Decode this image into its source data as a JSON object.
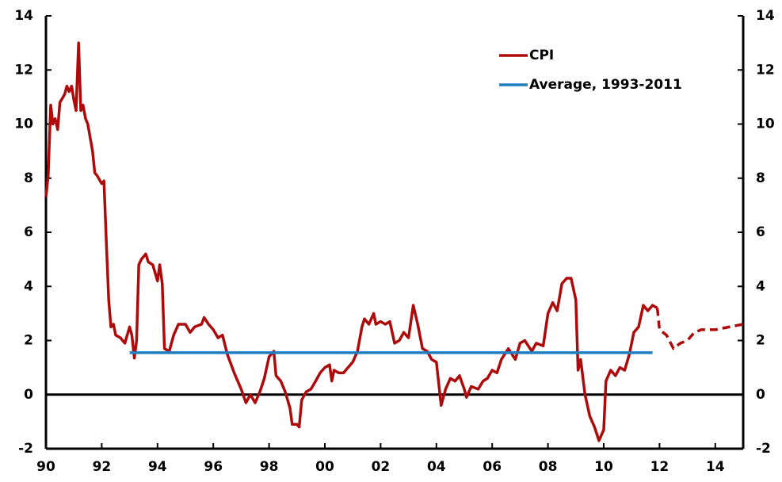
{
  "chart_data": {
    "type": "line",
    "xlim": [
      1990,
      2015
    ],
    "xticks": [
      {
        "value": 1990,
        "label": "90"
      },
      {
        "value": 1992,
        "label": "92"
      },
      {
        "value": 1994,
        "label": "94"
      },
      {
        "value": 1996,
        "label": "96"
      },
      {
        "value": 1998,
        "label": "98"
      },
      {
        "value": 2000,
        "label": "00"
      },
      {
        "value": 2002,
        "label": "02"
      },
      {
        "value": 2004,
        "label": "04"
      },
      {
        "value": 2006,
        "label": "06"
      },
      {
        "value": 2008,
        "label": "08"
      },
      {
        "value": 2010,
        "label": "10"
      },
      {
        "value": 2012,
        "label": "12"
      },
      {
        "value": 2014,
        "label": "14"
      }
    ],
    "ylim": [
      -2,
      14
    ],
    "yticks": [
      -2,
      0,
      2,
      4,
      6,
      8,
      10,
      12,
      14
    ],
    "y2lim": [
      -2,
      14
    ],
    "y2ticks": [
      -2,
      0,
      2,
      4,
      6,
      8,
      10,
      12,
      14
    ],
    "zero_line": true,
    "legend": "top-right",
    "series": [
      {
        "name": "CPI",
        "color": "#ad0b0b",
        "line_style": "solid",
        "x": [
          1990.0,
          1990.08,
          1990.17,
          1990.25,
          1990.33,
          1990.42,
          1990.5,
          1990.67,
          1990.75,
          1990.83,
          1990.92,
          1991.0,
          1991.08,
          1991.17,
          1991.25,
          1991.33,
          1991.42,
          1991.5,
          1991.67,
          1991.75,
          1991.83,
          1992.0,
          1992.08,
          1992.17,
          1992.25,
          1992.33,
          1992.42,
          1992.5,
          1992.67,
          1992.83,
          1993.0,
          1993.08,
          1993.17,
          1993.25,
          1993.33,
          1993.42,
          1993.58,
          1993.67,
          1993.83,
          1994.0,
          1994.08,
          1994.17,
          1994.25,
          1994.42,
          1994.58,
          1994.75,
          1995.0,
          1995.17,
          1995.33,
          1995.58,
          1995.67,
          1995.83,
          1996.0,
          1996.17,
          1996.33,
          1996.5,
          1996.75,
          1997.0,
          1997.17,
          1997.33,
          1997.5,
          1997.67,
          1997.83,
          1998.0,
          1998.17,
          1998.25,
          1998.42,
          1998.58,
          1998.75,
          1998.83,
          1999.0,
          1999.08,
          1999.17,
          1999.33,
          1999.5,
          1999.67,
          1999.83,
          2000.0,
          2000.17,
          2000.25,
          2000.33,
          2000.5,
          2000.67,
          2000.83,
          2001.0,
          2001.17,
          2001.33,
          2001.42,
          2001.58,
          2001.75,
          2001.83,
          2002.0,
          2002.17,
          2002.33,
          2002.5,
          2002.67,
          2002.83,
          2003.0,
          2003.17,
          2003.33,
          2003.5,
          2003.67,
          2003.83,
          2004.0,
          2004.17,
          2004.33,
          2004.5,
          2004.67,
          2004.83,
          2005.0,
          2005.08,
          2005.25,
          2005.5,
          2005.67,
          2005.83,
          2006.0,
          2006.17,
          2006.33,
          2006.58,
          2006.83,
          2007.0,
          2007.17,
          2007.42,
          2007.58,
          2007.83,
          2008.0,
          2008.17,
          2008.33,
          2008.5,
          2008.67,
          2008.83,
          2009.0,
          2009.08,
          2009.17,
          2009.33,
          2009.5,
          2009.67,
          2009.83,
          2010.0,
          2010.08,
          2010.25,
          2010.42,
          2010.58,
          2010.75,
          2010.92,
          2011.08,
          2011.25,
          2011.42,
          2011.58,
          2011.75,
          2011.92
        ],
        "values": [
          7.3,
          8.1,
          10.7,
          10.0,
          10.2,
          9.8,
          10.8,
          11.1,
          11.4,
          11.2,
          11.4,
          10.9,
          10.5,
          13.0,
          10.5,
          10.7,
          10.2,
          10.0,
          9.0,
          8.2,
          8.1,
          7.8,
          7.9,
          5.5,
          3.5,
          2.5,
          2.6,
          2.2,
          2.1,
          1.9,
          2.5,
          2.2,
          1.35,
          2.0,
          4.8,
          5.0,
          5.2,
          4.9,
          4.8,
          4.2,
          4.8,
          4.1,
          1.7,
          1.6,
          2.2,
          2.6,
          2.6,
          2.3,
          2.5,
          2.6,
          2.85,
          2.6,
          2.4,
          2.1,
          2.2,
          1.5,
          0.8,
          0.2,
          -0.3,
          0.0,
          -0.3,
          0.1,
          0.6,
          1.4,
          1.6,
          0.7,
          0.5,
          0.1,
          -0.5,
          -1.1,
          -1.1,
          -1.2,
          -0.2,
          0.1,
          0.2,
          0.5,
          0.8,
          1.0,
          1.1,
          0.5,
          0.9,
          0.8,
          0.8,
          1.0,
          1.2,
          1.6,
          2.5,
          2.8,
          2.6,
          3.0,
          2.6,
          2.7,
          2.6,
          2.7,
          1.9,
          2.0,
          2.3,
          2.1,
          3.3,
          2.6,
          1.7,
          1.6,
          1.3,
          1.2,
          -0.4,
          0.2,
          0.6,
          0.5,
          0.7,
          0.2,
          -0.1,
          0.3,
          0.2,
          0.5,
          0.6,
          0.9,
          0.8,
          1.3,
          1.7,
          1.3,
          1.9,
          2.0,
          1.6,
          1.9,
          1.8,
          3.0,
          3.4,
          3.1,
          4.1,
          4.3,
          4.3,
          3.5,
          0.9,
          1.3,
          0.0,
          -0.8,
          -1.2,
          -1.7,
          -1.3,
          0.5,
          0.9,
          0.7,
          1.0,
          0.9,
          1.5,
          2.3,
          2.5,
          3.3,
          3.1,
          3.3,
          3.2
        ]
      },
      {
        "color": "#ad0b0b",
        "line_style": "dashed",
        "x": [
          2011.92,
          2012.0,
          2012.25,
          2012.5,
          2012.75,
          2013.0,
          2013.25,
          2013.5,
          2014.0,
          2014.5,
          2015.0
        ],
        "values": [
          3.2,
          2.4,
          2.2,
          1.7,
          1.9,
          2.0,
          2.3,
          2.4,
          2.4,
          2.5,
          2.6
        ]
      },
      {
        "name": "Average, 1993-2011",
        "color": "#1f7fc0",
        "line_style": "solid",
        "x": [
          1993.0,
          2011.75
        ],
        "values": [
          1.55,
          1.55
        ]
      }
    ]
  }
}
